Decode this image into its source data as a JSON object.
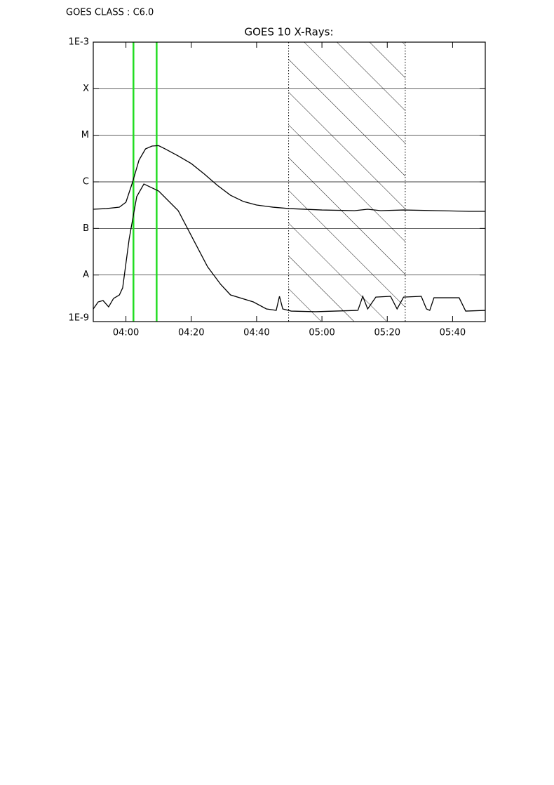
{
  "chart_data": {
    "type": "line",
    "header": "GOES CLASS : C6.0",
    "title": "GOES 10 X-Rays:",
    "log_y": true,
    "grid": true,
    "xlim": [
      230,
      350
    ],
    "xticks": [
      {
        "value": 240,
        "label": "04:00"
      },
      {
        "value": 260,
        "label": "04:20"
      },
      {
        "value": 280,
        "label": "04:40"
      },
      {
        "value": 300,
        "label": "05:00"
      },
      {
        "value": 320,
        "label": "05:20"
      },
      {
        "value": 340,
        "label": "05:40"
      }
    ],
    "ylim": [
      1e-09,
      0.001
    ],
    "yticks": [
      {
        "value": 1e-09,
        "label": "1E-9"
      },
      {
        "value": 1e-08,
        "label": "A"
      },
      {
        "value": 1e-07,
        "label": "B"
      },
      {
        "value": 1e-06,
        "label": "C"
      },
      {
        "value": 1e-05,
        "label": "M"
      },
      {
        "value": 0.0001,
        "label": "X"
      },
      {
        "value": 0.001,
        "label": "1E-3"
      }
    ],
    "markers": [
      242.3,
      249.4
    ],
    "marker_color": "#22dd22",
    "shaded_range": [
      289.8,
      325.5
    ],
    "series": [
      {
        "color": "#000000",
        "x": [
          230,
          234,
          238,
          240,
          242,
          244,
          246,
          248,
          250,
          252,
          256,
          260,
          264,
          268,
          272,
          276,
          280,
          285,
          290,
          300,
          310,
          314,
          318,
          325,
          335,
          345,
          350
        ],
        "values": [
          2.58e-07,
          2.67e-07,
          2.86e-07,
          3.66e-07,
          9.7e-07,
          2.93e-06,
          5.1e-06,
          5.87e-06,
          6e-06,
          5.1e-06,
          3.61e-06,
          2.47e-06,
          1.47e-06,
          8.4e-07,
          5.16e-07,
          3.78e-07,
          3.18e-07,
          2.86e-07,
          2.67e-07,
          2.49e-07,
          2.41e-07,
          2.58e-07,
          2.41e-07,
          2.49e-07,
          2.41e-07,
          2.33e-07,
          2.33e-07
        ]
      },
      {
        "color": "#000000",
        "x": [
          230,
          231.5,
          233,
          234.7,
          236.2,
          238,
          239,
          241,
          243.3,
          245.5,
          250,
          256,
          260.5,
          265,
          269,
          272,
          279,
          283,
          286,
          287,
          288,
          290.6,
          298,
          311,
          312.5,
          314,
          316.5,
          321,
          323,
          325,
          330.4,
          332,
          333,
          334.3,
          342,
          344,
          350
        ],
        "values": [
          1.87e-09,
          2.64e-09,
          2.83e-09,
          2.07e-09,
          3.14e-09,
          3.74e-09,
          5.3e-09,
          6e-08,
          4.82e-07,
          9e-07,
          6.37e-07,
          2.41e-07,
          6e-08,
          1.5e-08,
          6.3e-09,
          3.74e-09,
          2.64e-09,
          1.87e-09,
          1.74e-09,
          3.49e-09,
          1.87e-09,
          1.68e-09,
          1.63e-09,
          1.74e-09,
          3.49e-09,
          1.87e-09,
          3.36e-09,
          3.49e-09,
          1.87e-09,
          3.36e-09,
          3.49e-09,
          1.87e-09,
          1.74e-09,
          3.25e-09,
          3.25e-09,
          1.68e-09,
          1.74e-09
        ]
      }
    ]
  }
}
